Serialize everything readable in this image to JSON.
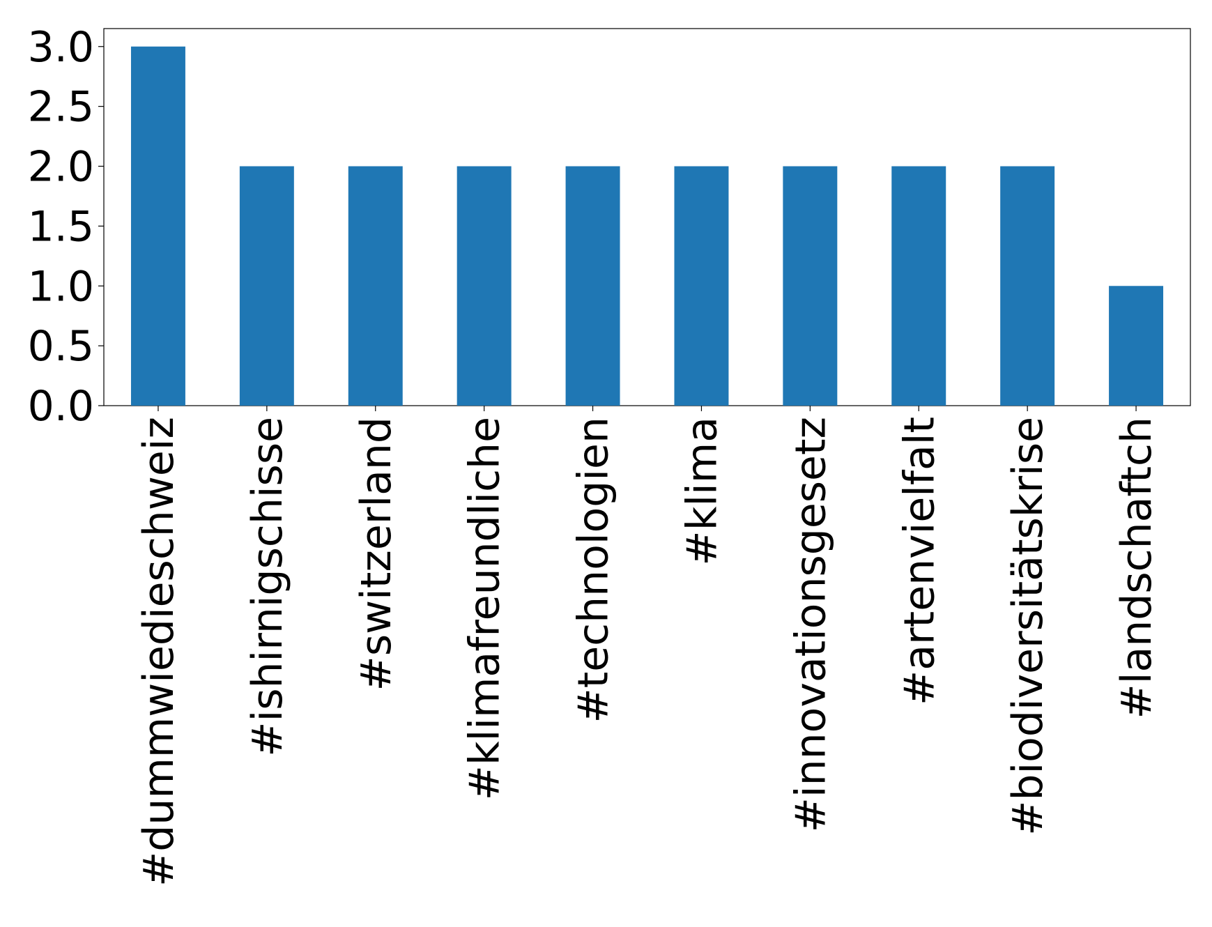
{
  "chart_data": {
    "type": "bar",
    "categories": [
      "#dummwiedieschweiz",
      "#ishirnigschisse",
      "#switzerland",
      "#klimafreundliche",
      "#technologien",
      "#klima",
      "#innovationsgesetz",
      "#artenvielfalt",
      "#biodiversitätskrise",
      "#landschaftch"
    ],
    "values": [
      3,
      2,
      2,
      2,
      2,
      2,
      2,
      2,
      2,
      1
    ],
    "color": "#1f77b4",
    "ylim": [
      0,
      3.15
    ],
    "yticks": [
      {
        "value": 0,
        "label": "0.0"
      },
      {
        "value": 0.5,
        "label": "0.5"
      },
      {
        "value": 1,
        "label": "1.0"
      },
      {
        "value": 1.5,
        "label": "1.5"
      },
      {
        "value": 2,
        "label": "2.0"
      },
      {
        "value": 2.5,
        "label": "2.5"
      },
      {
        "value": 3,
        "label": "3.0"
      }
    ],
    "grid": false
  }
}
